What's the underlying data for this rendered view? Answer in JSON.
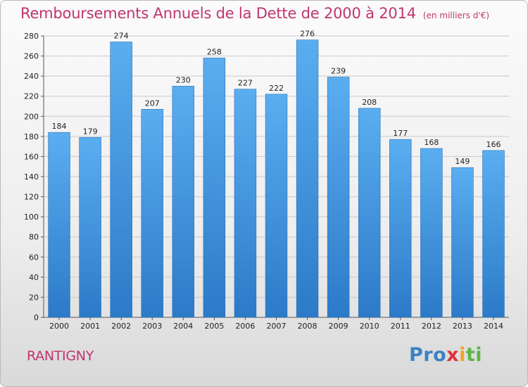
{
  "title": {
    "main": "Remboursements Annuels de la Dette de 2000 à 2014",
    "unit": "(en milliers d'€)"
  },
  "commune": "RANTIGNY",
  "logo": [
    "Pro",
    "x",
    "i",
    "ti"
  ],
  "colors": {
    "title": "#c0356e",
    "bar_top": "#5aaef0",
    "bar_bottom": "#2c7ac8"
  },
  "chart_data": {
    "type": "bar",
    "title": "Remboursements Annuels de la Dette de 2000 à 2014",
    "subtitle": "(en milliers d'€)",
    "categories": [
      "2000",
      "2001",
      "2002",
      "2003",
      "2004",
      "2005",
      "2006",
      "2007",
      "2008",
      "2009",
      "2010",
      "2011",
      "2012",
      "2013",
      "2014"
    ],
    "values": [
      184,
      179,
      274,
      207,
      230,
      258,
      227,
      222,
      276,
      239,
      208,
      177,
      168,
      149,
      166
    ],
    "ylim": [
      0,
      280
    ],
    "yticks": [
      0,
      20,
      40,
      60,
      80,
      100,
      120,
      140,
      160,
      180,
      200,
      220,
      240,
      260,
      280
    ],
    "grid": true
  }
}
